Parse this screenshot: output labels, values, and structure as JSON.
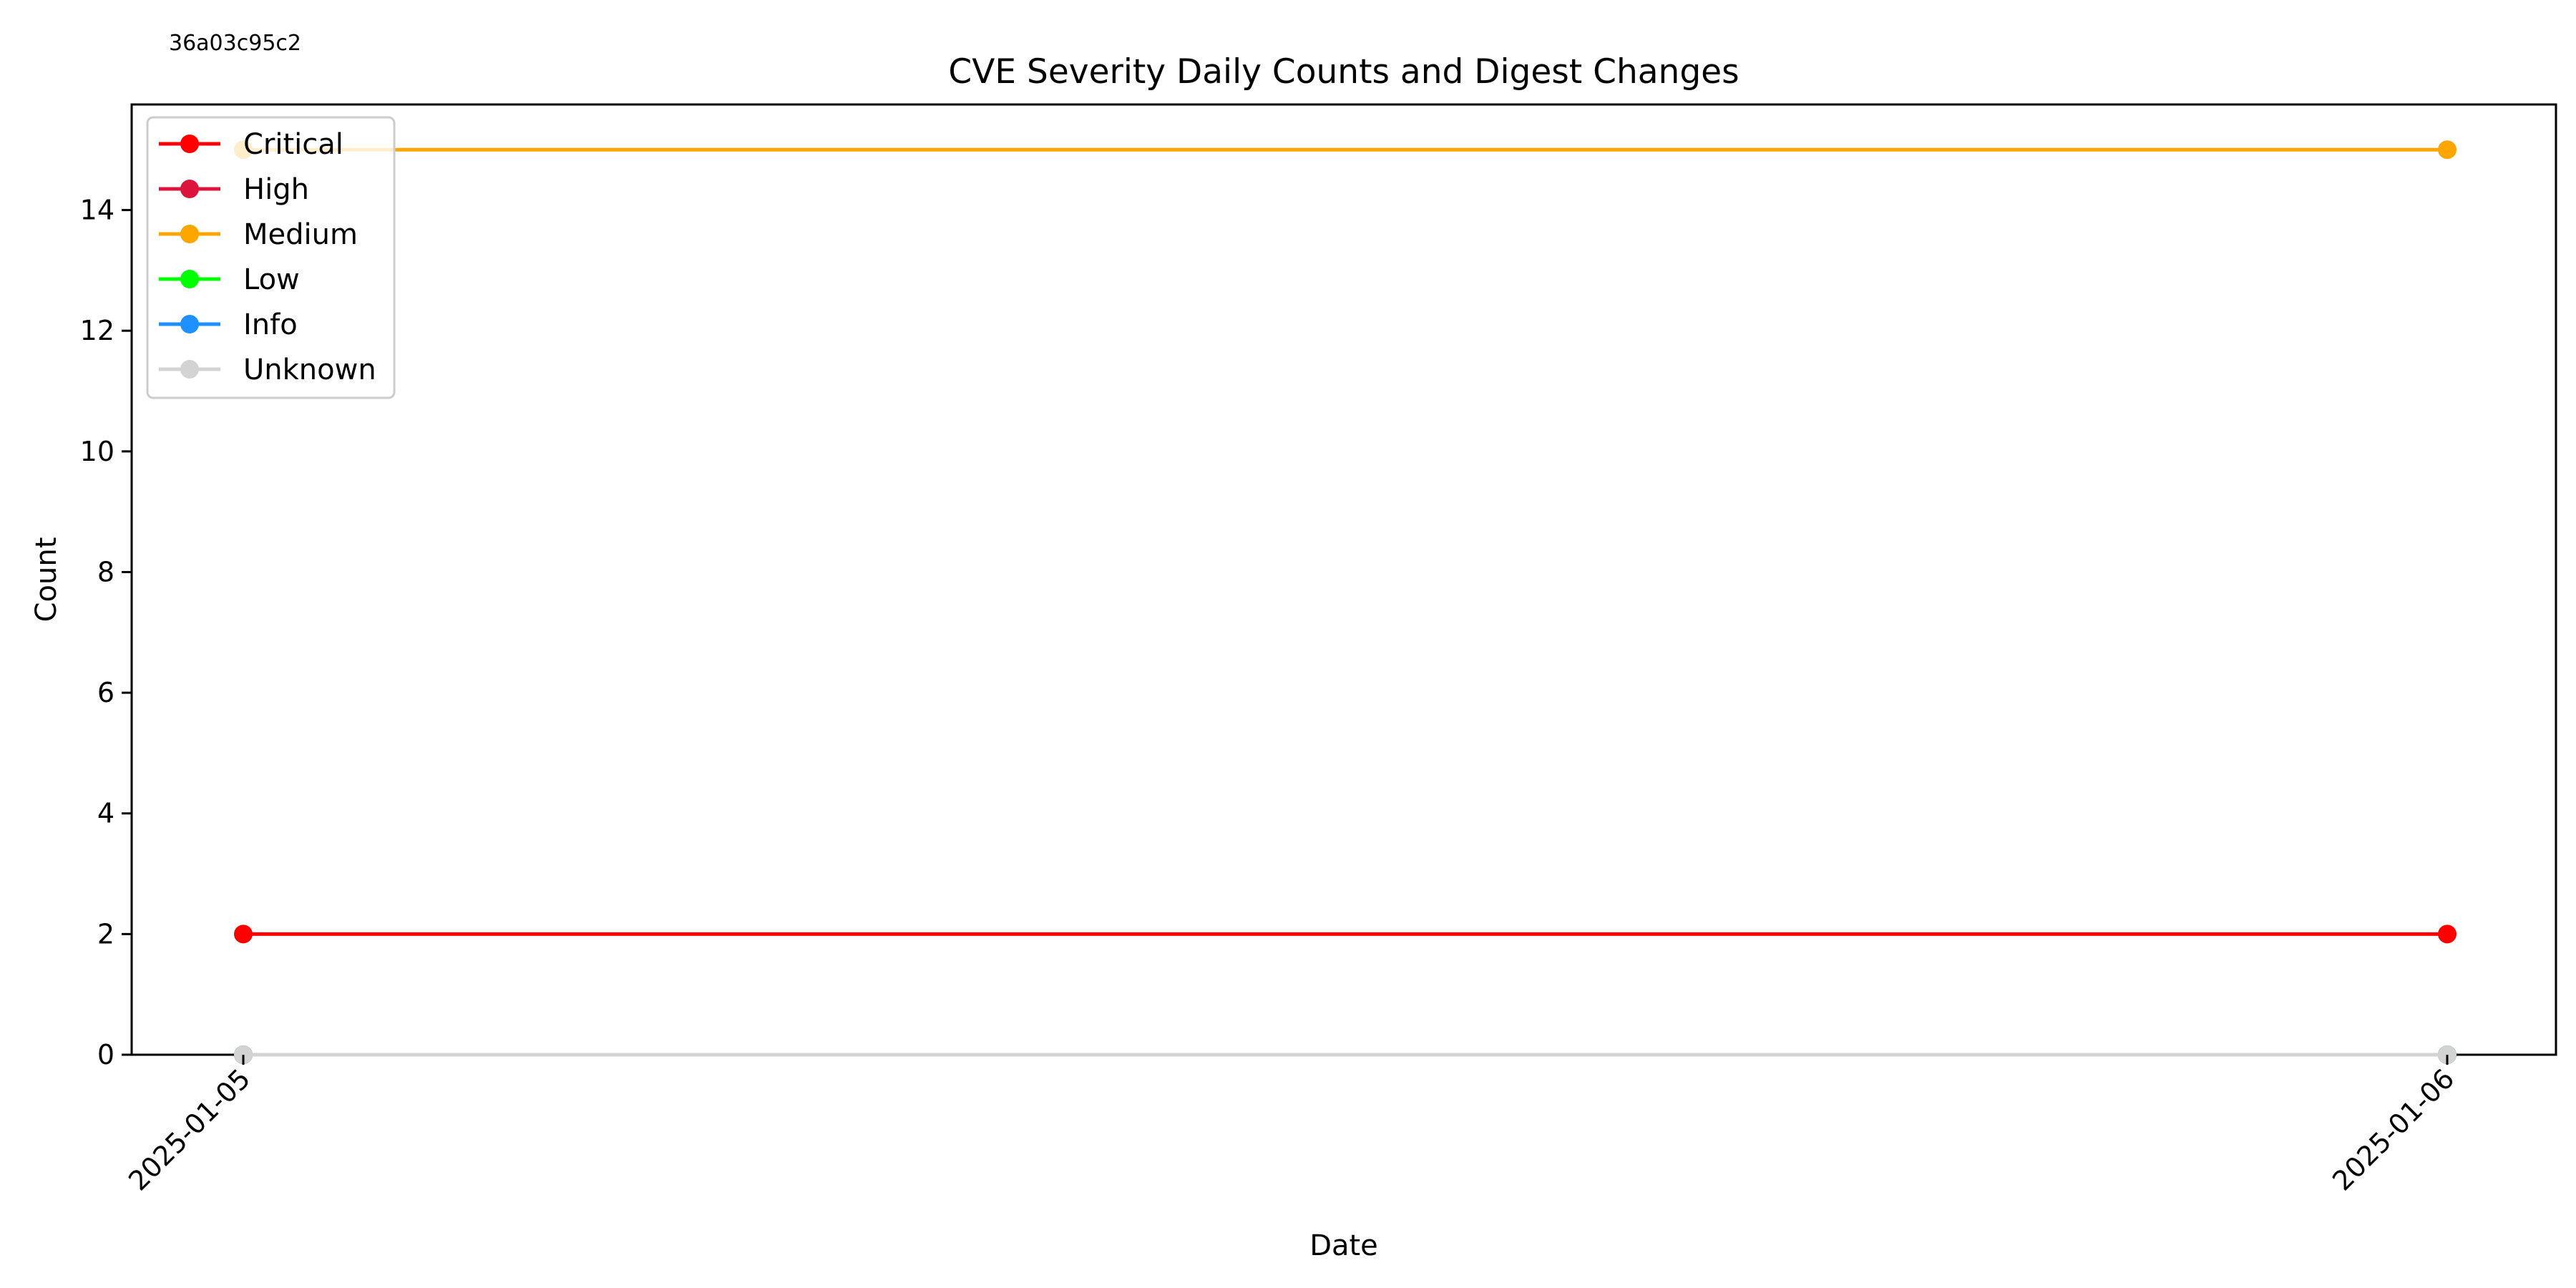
{
  "header": {
    "hash_label": "36a03c95c2"
  },
  "chart_data": {
    "type": "line",
    "title": "CVE Severity Daily Counts and Digest Changes",
    "xlabel": "Date",
    "ylabel": "Count",
    "x": [
      "2025-01-05",
      "2025-01-06"
    ],
    "ylim": [
      0,
      15.75
    ],
    "yticks": [
      0,
      2,
      4,
      6,
      8,
      10,
      12,
      14
    ],
    "grid": false,
    "legend_position": "top-left",
    "series": [
      {
        "name": "Critical",
        "color": "#ff0000",
        "values": [
          2,
          2
        ]
      },
      {
        "name": "High",
        "color": "#dc143c",
        "values": [
          0,
          0
        ]
      },
      {
        "name": "Medium",
        "color": "#ffa500",
        "values": [
          15,
          15
        ]
      },
      {
        "name": "Low",
        "color": "#00ff00",
        "values": [
          0,
          0
        ]
      },
      {
        "name": "Info",
        "color": "#1e90ff",
        "values": [
          0,
          0
        ]
      },
      {
        "name": "Unknown",
        "color": "#d3d3d3",
        "values": [
          0,
          0
        ]
      }
    ]
  }
}
